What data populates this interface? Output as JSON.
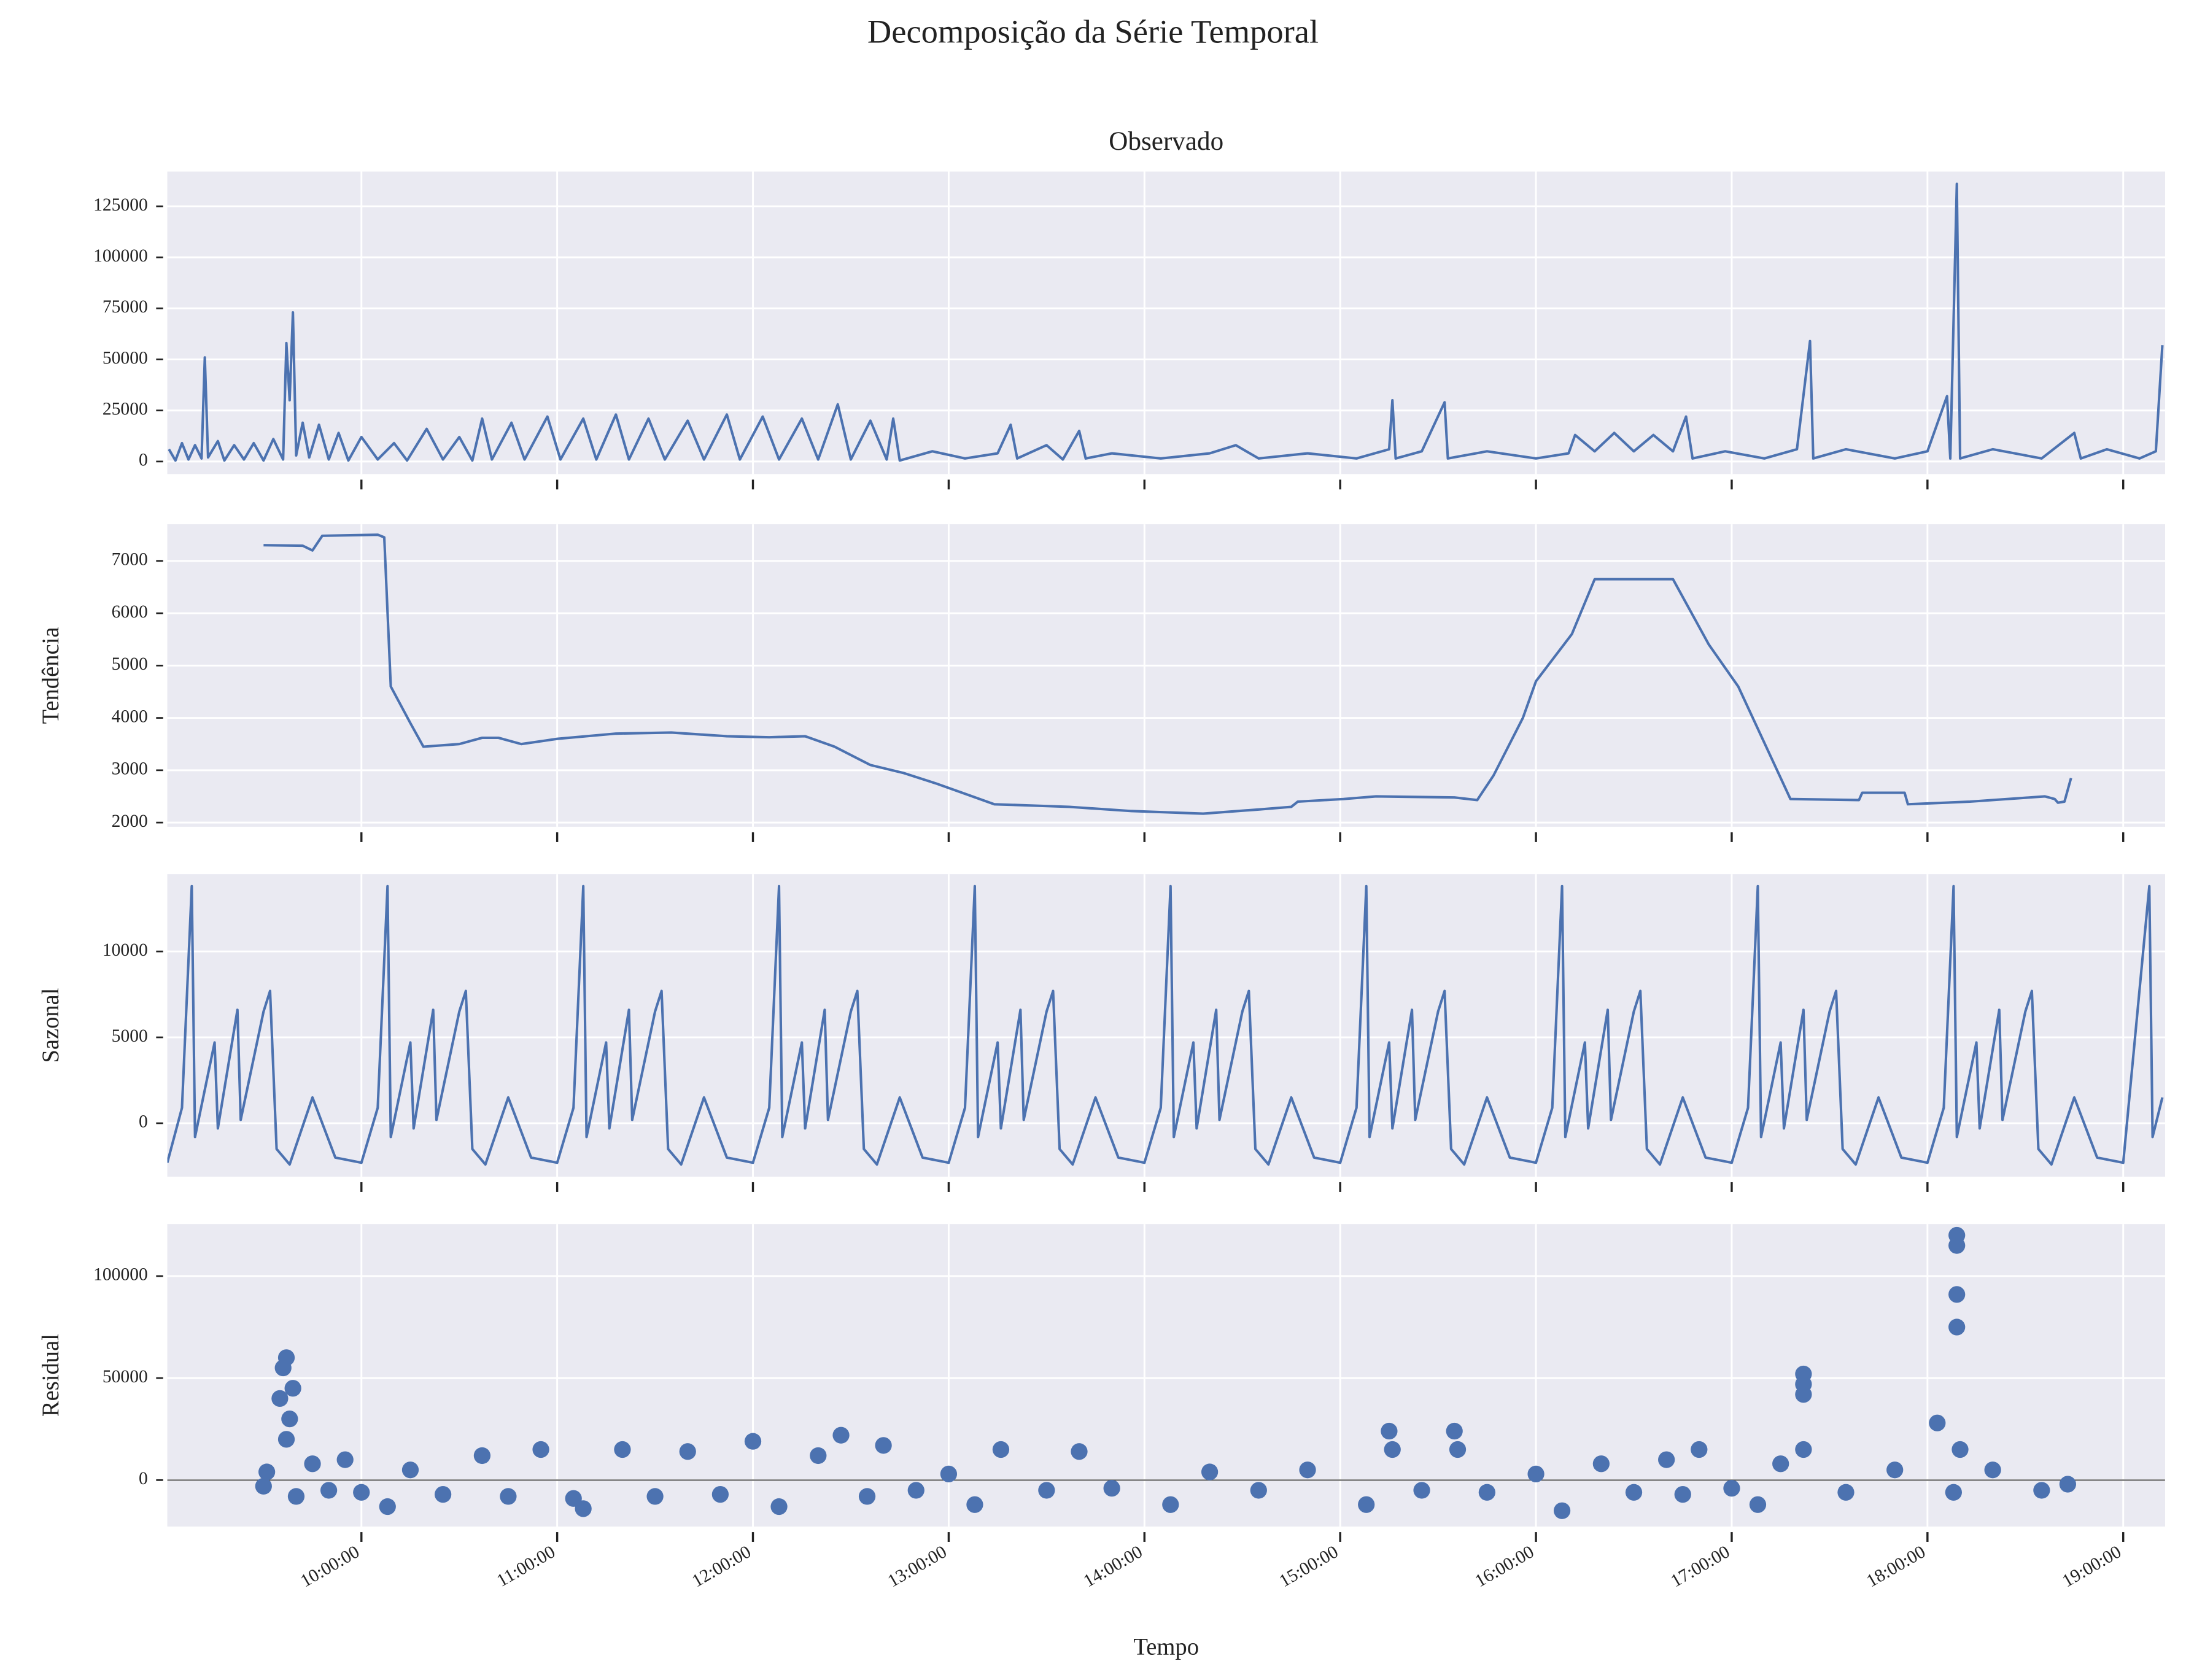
{
  "title": "Decomposição da Série Temporal",
  "chart_data": [
    {
      "type": "line",
      "title": "Observado",
      "color": "#4c72b0",
      "grid": true,
      "xlim": [
        "09:00:30",
        "19:12:50"
      ],
      "xticks": [
        "10:00:00",
        "11:00:00",
        "12:00:00",
        "13:00:00",
        "14:00:00",
        "15:00:00",
        "16:00:00",
        "17:00:00",
        "18:00:00",
        "19:00:00"
      ],
      "ylim": [
        -6150,
        142000
      ],
      "yticks": [
        0,
        25000,
        50000,
        75000,
        100000,
        125000
      ],
      "x": [
        "09:01:00",
        "09:03:00",
        "09:05:00",
        "09:07:00",
        "09:09:00",
        "09:11:00",
        "09:12:00",
        "09:13:00",
        "09:16:00",
        "09:18:00",
        "09:21:00",
        "09:24:00",
        "09:27:00",
        "09:30:00",
        "09:33:00",
        "09:36:00",
        "09:37:00",
        "09:38:00",
        "09:39:00",
        "09:40:00",
        "09:42:00",
        "09:44:00",
        "09:47:00",
        "09:50:00",
        "09:53:00",
        "09:56:00",
        "10:00:00",
        "10:05:00",
        "10:10:00",
        "10:14:00",
        "10:20:00",
        "10:25:00",
        "10:30:00",
        "10:34:00",
        "10:37:00",
        "10:40:00",
        "10:46:00",
        "10:50:00",
        "10:57:00",
        "11:01:00",
        "11:08:00",
        "11:12:00",
        "11:18:00",
        "11:22:00",
        "11:28:00",
        "11:33:00",
        "11:40:00",
        "11:45:00",
        "11:52:00",
        "11:56:00",
        "12:03:00",
        "12:08:00",
        "12:15:00",
        "12:20:00",
        "12:26:00",
        "12:30:00",
        "12:36:00",
        "12:41:00",
        "12:43:00",
        "12:45:00",
        "12:55:00",
        "13:05:00",
        "13:15:00",
        "13:19:00",
        "13:21:00",
        "13:30:00",
        "13:35:00",
        "13:40:00",
        "13:42:00",
        "13:50:00",
        "14:05:00",
        "14:20:00",
        "14:28:00",
        "14:35:00",
        "14:50:00",
        "15:05:00",
        "15:15:00",
        "15:16:00",
        "15:17:00",
        "15:25:00",
        "15:32:00",
        "15:33:00",
        "15:45:00",
        "16:00:00",
        "16:10:00",
        "16:12:00",
        "16:18:00",
        "16:24:00",
        "16:30:00",
        "16:36:00",
        "16:42:00",
        "16:46:00",
        "16:48:00",
        "16:58:00",
        "17:10:00",
        "17:20:00",
        "17:24:00",
        "17:25:00",
        "17:35:00",
        "17:50:00",
        "18:00:00",
        "18:06:00",
        "18:07:00",
        "18:09:00",
        "18:10:00",
        "18:20:00",
        "18:35:00",
        "18:45:00",
        "18:47:00",
        "18:55:00",
        "19:05:00",
        "19:10:00",
        "19:12:00"
      ],
      "values": [
        6000,
        500,
        9000,
        1000,
        8000,
        1500,
        51000,
        2000,
        10000,
        500,
        8000,
        1000,
        9000,
        500,
        11000,
        1000,
        58000,
        30000,
        73000,
        3000,
        19000,
        2000,
        18000,
        1000,
        14000,
        500,
        12000,
        1000,
        9000,
        500,
        16000,
        1000,
        12000,
        500,
        21000,
        1000,
        19000,
        1000,
        22000,
        1000,
        21000,
        1000,
        23000,
        1000,
        21000,
        1000,
        20000,
        1000,
        23000,
        1000,
        22000,
        1000,
        21000,
        1000,
        28000,
        1000,
        20000,
        1000,
        21000,
        500,
        5000,
        1500,
        4000,
        18000,
        1500,
        8000,
        1000,
        15000,
        1500,
        4000,
        1500,
        4000,
        8000,
        1500,
        4000,
        1500,
        6000,
        30000,
        1500,
        5000,
        29000,
        1500,
        5000,
        1500,
        4000,
        13000,
        5000,
        14000,
        5000,
        13000,
        5000,
        22000,
        1500,
        5000,
        1500,
        6000,
        59000,
        1500,
        6000,
        1500,
        5000,
        32000,
        1500,
        136000,
        1500,
        6000,
        1500,
        14000,
        1500,
        6000,
        1500,
        5000,
        57000
      ]
    },
    {
      "type": "line",
      "ylabel": "Tendência",
      "color": "#4c72b0",
      "grid": true,
      "xlim": [
        "09:00:30",
        "19:12:50"
      ],
      "xticks": [
        "10:00:00",
        "11:00:00",
        "12:00:00",
        "13:00:00",
        "14:00:00",
        "15:00:00",
        "16:00:00",
        "17:00:00",
        "18:00:00",
        "19:00:00"
      ],
      "ylim": [
        1920,
        7700
      ],
      "yticks": [
        2000,
        3000,
        4000,
        5000,
        6000,
        7000
      ],
      "x": [
        "09:30:00",
        "09:42:00",
        "09:45:00",
        "09:48:00",
        "10:05:00",
        "10:07:00",
        "10:09:00",
        "10:15:00",
        "10:19:00",
        "10:30:00",
        "10:37:00",
        "10:42:00",
        "10:49:00",
        "11:00:00",
        "11:18:00",
        "11:35:00",
        "11:52:00",
        "12:05:00",
        "12:16:00",
        "12:25:00",
        "12:36:00",
        "12:46:00",
        "12:56:00",
        "13:05:00",
        "13:14:00",
        "13:37:00",
        "13:56:00",
        "14:18:00",
        "14:35:00",
        "14:45:00",
        "14:47:00",
        "15:01:00",
        "15:11:00",
        "15:35:00",
        "15:42:00",
        "15:47:00",
        "15:56:00",
        "16:00:00",
        "16:11:00",
        "16:18:00",
        "16:42:00",
        "16:53:00",
        "17:02:00",
        "17:18:00",
        "17:39:00",
        "17:40:00",
        "17:53:00",
        "17:54:00",
        "18:13:00",
        "18:36:00",
        "18:39:00",
        "18:40:00",
        "18:42:00",
        "18:44:00"
      ],
      "values": [
        7300,
        7290,
        7200,
        7480,
        7500,
        7450,
        4600,
        3900,
        3450,
        3500,
        3620,
        3620,
        3500,
        3600,
        3700,
        3720,
        3650,
        3630,
        3650,
        3450,
        3100,
        2950,
        2750,
        2550,
        2350,
        2300,
        2220,
        2170,
        2250,
        2300,
        2400,
        2450,
        2500,
        2480,
        2430,
        2900,
        4000,
        4700,
        5600,
        6650,
        6650,
        5400,
        4600,
        2450,
        2430,
        2570,
        2570,
        2350,
        2400,
        2500,
        2450,
        2380,
        2400,
        2850
      ]
    },
    {
      "type": "line",
      "ylabel": "Sazonal",
      "color": "#4c72b0",
      "grid": true,
      "xlim": [
        "09:00:30",
        "19:12:50"
      ],
      "xticks": [
        "10:00:00",
        "11:00:00",
        "12:00:00",
        "13:00:00",
        "14:00:00",
        "15:00:00",
        "16:00:00",
        "17:00:00",
        "18:00:00",
        "19:00:00"
      ],
      "ylim": [
        -3110,
        14500
      ],
      "yticks": [
        0,
        5000,
        10000
      ],
      "x": [
        "09:00:30",
        "09:05:00",
        "09:08:00",
        "09:09:00",
        "09:15:00",
        "09:16:00",
        "09:22:00",
        "09:23:00",
        "09:30:00",
        "09:32:00",
        "09:34:00",
        "09:38:00",
        "09:45:00",
        "09:52:00",
        "10:00:00",
        "10:05:00",
        "10:08:00",
        "10:09:00",
        "10:15:00",
        "10:16:00",
        "10:22:00",
        "10:23:00",
        "10:30:00",
        "10:32:00",
        "10:34:00",
        "10:38:00",
        "10:45:00",
        "10:52:00",
        "11:00:00",
        "11:05:00",
        "11:08:00",
        "11:09:00",
        "11:15:00",
        "11:16:00",
        "11:22:00",
        "11:23:00",
        "11:30:00",
        "11:32:00",
        "11:34:00",
        "11:38:00",
        "11:45:00",
        "11:52:00",
        "12:00:00",
        "12:05:00",
        "12:08:00",
        "12:09:00",
        "12:15:00",
        "12:16:00",
        "12:22:00",
        "12:23:00",
        "12:30:00",
        "12:32:00",
        "12:34:00",
        "12:38:00",
        "12:45:00",
        "12:52:00",
        "13:00:00",
        "13:05:00",
        "13:08:00",
        "13:09:00",
        "13:15:00",
        "13:16:00",
        "13:22:00",
        "13:23:00",
        "13:30:00",
        "13:32:00",
        "13:34:00",
        "13:38:00",
        "13:45:00",
        "13:52:00",
        "14:00:00",
        "14:05:00",
        "14:08:00",
        "14:09:00",
        "14:15:00",
        "14:16:00",
        "14:22:00",
        "14:23:00",
        "14:30:00",
        "14:32:00",
        "14:34:00",
        "14:38:00",
        "14:45:00",
        "14:52:00",
        "15:00:00",
        "15:05:00",
        "15:08:00",
        "15:09:00",
        "15:15:00",
        "15:16:00",
        "15:22:00",
        "15:23:00",
        "15:30:00",
        "15:32:00",
        "15:34:00",
        "15:38:00",
        "15:45:00",
        "15:52:00",
        "16:00:00",
        "16:05:00",
        "16:08:00",
        "16:09:00",
        "16:15:00",
        "16:16:00",
        "16:22:00",
        "16:23:00",
        "16:30:00",
        "16:32:00",
        "16:34:00",
        "16:38:00",
        "16:45:00",
        "16:52:00",
        "17:00:00",
        "17:05:00",
        "17:08:00",
        "17:09:00",
        "17:15:00",
        "17:16:00",
        "17:22:00",
        "17:23:00",
        "17:30:00",
        "17:32:00",
        "17:34:00",
        "17:38:00",
        "17:45:00",
        "17:52:00",
        "18:00:00",
        "18:05:00",
        "18:08:00",
        "18:09:00",
        "18:15:00",
        "18:16:00",
        "18:22:00",
        "18:23:00",
        "18:30:00",
        "18:32:00",
        "18:34:00",
        "18:38:00",
        "18:45:00",
        "18:52:00",
        "19:00:00",
        "19:08:00",
        "19:09:00",
        "19:12:00"
      ],
      "values": [
        -2300,
        900,
        13800,
        -800,
        4700,
        -300,
        6600,
        200,
        6500,
        7700,
        -1500,
        -2400,
        1500,
        -2000,
        -2300,
        900,
        13800,
        -800,
        4700,
        -300,
        6600,
        200,
        6500,
        7700,
        -1500,
        -2400,
        1500,
        -2000,
        -2300,
        900,
        13800,
        -800,
        4700,
        -300,
        6600,
        200,
        6500,
        7700,
        -1500,
        -2400,
        1500,
        -2000,
        -2300,
        900,
        13800,
        -800,
        4700,
        -300,
        6600,
        200,
        6500,
        7700,
        -1500,
        -2400,
        1500,
        -2000,
        -2300,
        900,
        13800,
        -800,
        4700,
        -300,
        6600,
        200,
        6500,
        7700,
        -1500,
        -2400,
        1500,
        -2000,
        -2300,
        900,
        13800,
        -800,
        4700,
        -300,
        6600,
        200,
        6500,
        7700,
        -1500,
        -2400,
        1500,
        -2000,
        -2300,
        900,
        13800,
        -800,
        4700,
        -300,
        6600,
        200,
        6500,
        7700,
        -1500,
        -2400,
        1500,
        -2000,
        -2300,
        900,
        13800,
        -800,
        4700,
        -300,
        6600,
        200,
        6500,
        7700,
        -1500,
        -2400,
        1500,
        -2000,
        -2300,
        900,
        13800,
        -800,
        4700,
        -300,
        6600,
        200,
        6500,
        7700,
        -1500,
        -2400,
        1500,
        -2000,
        -2300,
        900,
        13800,
        -800,
        4700,
        -300,
        6600,
        200,
        6500,
        7700,
        -1500,
        -2400,
        1500,
        -2000,
        -2300,
        13800,
        -800,
        1500
      ]
    },
    {
      "type": "scatter",
      "ylabel": "Residual",
      "xlabel": "Tempo",
      "color": "#4c72b0",
      "grid": true,
      "xlim": [
        "09:00:30",
        "19:12:50"
      ],
      "xticks": [
        "10:00:00",
        "11:00:00",
        "12:00:00",
        "13:00:00",
        "14:00:00",
        "15:00:00",
        "16:00:00",
        "17:00:00",
        "18:00:00",
        "19:00:00"
      ],
      "ylim": [
        -22760,
        125500
      ],
      "yticks": [
        0,
        50000,
        100000
      ],
      "x": [
        "09:30:00",
        "09:31:00",
        "09:35:00",
        "09:36:00",
        "09:37:00",
        "09:38:00",
        "09:37:00",
        "09:39:00",
        "09:40:00",
        "09:45:00",
        "09:50:00",
        "09:55:00",
        "10:00:00",
        "10:08:00",
        "10:15:00",
        "10:25:00",
        "10:37:00",
        "10:45:00",
        "10:55:00",
        "11:05:00",
        "11:08:00",
        "11:20:00",
        "11:30:00",
        "11:40:00",
        "11:50:00",
        "12:00:00",
        "12:08:00",
        "12:20:00",
        "12:27:00",
        "12:35:00",
        "12:40:00",
        "12:50:00",
        "13:00:00",
        "13:08:00",
        "13:16:00",
        "13:30:00",
        "13:40:00",
        "13:50:00",
        "14:08:00",
        "14:20:00",
        "14:35:00",
        "14:50:00",
        "15:08:00",
        "15:15:00",
        "15:16:00",
        "15:25:00",
        "15:35:00",
        "15:36:00",
        "15:45:00",
        "16:00:00",
        "16:08:00",
        "16:20:00",
        "16:30:00",
        "16:40:00",
        "16:45:00",
        "16:50:00",
        "17:00:00",
        "17:08:00",
        "17:15:00",
        "17:22:00",
        "17:22:00",
        "17:22:00",
        "17:22:00",
        "17:35:00",
        "17:50:00",
        "18:03:00",
        "18:08:00",
        "18:09:00",
        "18:09:00",
        "18:09:00",
        "18:09:00",
        "18:10:00",
        "18:20:00",
        "18:35:00",
        "18:43:00"
      ],
      "values": [
        -3000,
        4000,
        40000,
        55000,
        60000,
        30000,
        20000,
        45000,
        -8000,
        8000,
        -5000,
        10000,
        -6000,
        -13000,
        5000,
        -7000,
        12000,
        -8000,
        15000,
        -9000,
        -14000,
        15000,
        -8000,
        14000,
        -7000,
        19000,
        -13000,
        12000,
        22000,
        -8000,
        17000,
        -5000,
        3000,
        -12000,
        15000,
        -5000,
        14000,
        -4000,
        -12000,
        4000,
        -5000,
        5000,
        -12000,
        24000,
        15000,
        -5000,
        24000,
        15000,
        -6000,
        3000,
        -15000,
        8000,
        -6000,
        10000,
        -7000,
        15000,
        -4000,
        -12000,
        8000,
        52000,
        47000,
        42000,
        15000,
        -6000,
        5000,
        28000,
        -6000,
        120000,
        115000,
        91000,
        75000,
        15000,
        5000,
        -5000,
        -2000
      ]
    }
  ]
}
